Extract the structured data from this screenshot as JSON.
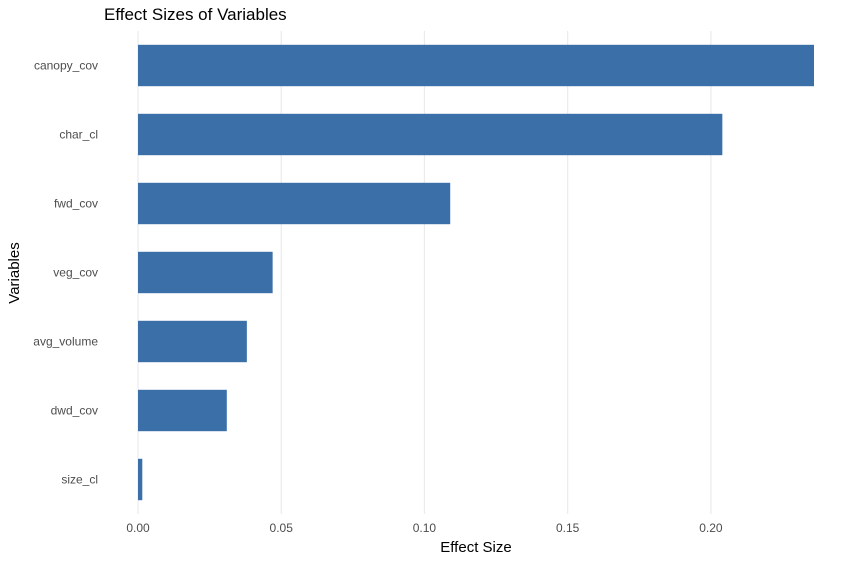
{
  "chart_data": {
    "type": "bar",
    "orientation": "horizontal",
    "title": "Effect Sizes of Variables",
    "xlabel": "Effect Size",
    "ylabel": "Variables",
    "categories": [
      "canopy_cov",
      "char_cl",
      "fwd_cov",
      "veg_cov",
      "avg_volume",
      "dwd_cov",
      "size_cl"
    ],
    "values": [
      0.236,
      0.204,
      0.109,
      0.047,
      0.038,
      0.031,
      0.0015
    ],
    "xlim": [
      0,
      0.236
    ],
    "xticks": [
      0.0,
      0.05,
      0.1,
      0.15,
      0.2
    ],
    "xtick_labels": [
      "0.00",
      "0.05",
      "0.10",
      "0.15",
      "0.20"
    ],
    "grid": "vertical",
    "legend": "none",
    "bar_color": "#3a6fa8"
  }
}
